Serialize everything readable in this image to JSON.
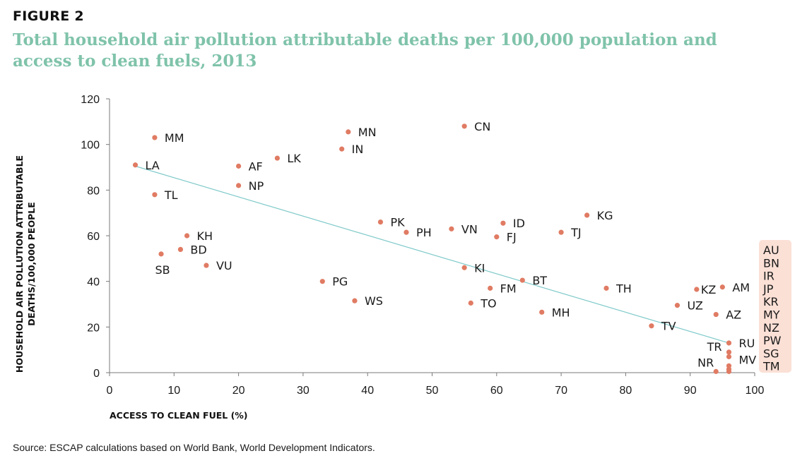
{
  "figure_label": "FIGURE 2",
  "source": "Source: ESCAP calculations based on World Bank, World Development Indicators.",
  "colors": {
    "title": "#7fc3aa",
    "point": "#e07b63",
    "trend": "#7fc9c9",
    "box": "#fbe0d6",
    "axis": "#7a7a7a"
  },
  "chart_data": {
    "type": "scatter",
    "title": "Total household air pollution attributable deaths per 100,000 population and access to clean fuels, 2013",
    "xlabel": "ACCESS TO CLEAN FUEL (%)",
    "ylabel": [
      "HOUSEHOLD AIR POLLUTION ATTRIBUTABLE",
      "DEATHS/100,000 PEOPLE"
    ],
    "xlim": [
      0,
      100
    ],
    "ylim": [
      0,
      120
    ],
    "xticks": [
      0,
      10,
      20,
      30,
      40,
      50,
      60,
      70,
      80,
      90,
      100
    ],
    "yticks": [
      0,
      20,
      40,
      60,
      80,
      100,
      120
    ],
    "grid": false,
    "trendline": {
      "x": [
        4,
        96
      ],
      "y": [
        90.5,
        13
      ]
    },
    "points": [
      {
        "label": "MM",
        "x": 7,
        "y": 103,
        "anchor": "right"
      },
      {
        "label": "LA",
        "x": 4,
        "y": 91,
        "anchor": "right"
      },
      {
        "label": "TL",
        "x": 7,
        "y": 78,
        "anchor": "right"
      },
      {
        "label": "KH",
        "x": 12,
        "y": 60,
        "anchor": "right"
      },
      {
        "label": "BD",
        "x": 11,
        "y": 54,
        "anchor": "right"
      },
      {
        "label": "SB",
        "x": 8,
        "y": 52,
        "anchor": "below"
      },
      {
        "label": "VU",
        "x": 15,
        "y": 47,
        "anchor": "right"
      },
      {
        "label": "AF",
        "x": 20,
        "y": 90.5,
        "anchor": "right"
      },
      {
        "label": "NP",
        "x": 20,
        "y": 82,
        "anchor": "right"
      },
      {
        "label": "LK",
        "x": 26,
        "y": 94,
        "anchor": "right"
      },
      {
        "label": "MN",
        "x": 37,
        "y": 105.5,
        "anchor": "right"
      },
      {
        "label": "IN",
        "x": 36,
        "y": 98,
        "anchor": "right"
      },
      {
        "label": "CN",
        "x": 55,
        "y": 108,
        "anchor": "right"
      },
      {
        "label": "PK",
        "x": 42,
        "y": 66,
        "anchor": "right"
      },
      {
        "label": "PH",
        "x": 46,
        "y": 61.5,
        "anchor": "right"
      },
      {
        "label": "VN",
        "x": 53,
        "y": 63,
        "anchor": "right"
      },
      {
        "label": "ID",
        "x": 61,
        "y": 65.5,
        "anchor": "right"
      },
      {
        "label": "FJ",
        "x": 60,
        "y": 59.5,
        "anchor": "right"
      },
      {
        "label": "TJ",
        "x": 70,
        "y": 61.5,
        "anchor": "right"
      },
      {
        "label": "KG",
        "x": 74,
        "y": 69,
        "anchor": "right"
      },
      {
        "label": "PG",
        "x": 33,
        "y": 40,
        "anchor": "right"
      },
      {
        "label": "WS",
        "x": 38,
        "y": 31.5,
        "anchor": "right"
      },
      {
        "label": "KI",
        "x": 55,
        "y": 46,
        "anchor": "right"
      },
      {
        "label": "BT",
        "x": 64,
        "y": 40.5,
        "anchor": "right"
      },
      {
        "label": "FM",
        "x": 59,
        "y": 37,
        "anchor": "right"
      },
      {
        "label": "TO",
        "x": 56,
        "y": 30.5,
        "anchor": "right"
      },
      {
        "label": "MH",
        "x": 67,
        "y": 26.5,
        "anchor": "right"
      },
      {
        "label": "TH",
        "x": 77,
        "y": 37,
        "anchor": "right"
      },
      {
        "label": "TV",
        "x": 84,
        "y": 20.5,
        "anchor": "right"
      },
      {
        "label": "UZ",
        "x": 88,
        "y": 29.5,
        "anchor": "right"
      },
      {
        "label": "KZ",
        "x": 91,
        "y": 36.5,
        "anchor": "right-tight"
      },
      {
        "label": "AM",
        "x": 95,
        "y": 37.5,
        "anchor": "right"
      },
      {
        "label": "AZ",
        "x": 94,
        "y": 25.5,
        "anchor": "right"
      },
      {
        "label": "RU",
        "x": 96,
        "y": 13,
        "anchor": "right"
      },
      {
        "label": "TR",
        "x": 96,
        "y": 9,
        "anchor": "left"
      },
      {
        "label": "MV",
        "x": 96,
        "y": 7,
        "anchor": "right-lower"
      },
      {
        "label": "NR",
        "x": 94,
        "y": 0.5,
        "anchor": "left-up"
      },
      {
        "label": "",
        "x": 96,
        "y": 3,
        "anchor": "none"
      },
      {
        "label": "",
        "x": 96,
        "y": 1.5,
        "anchor": "none"
      },
      {
        "label": "",
        "x": 96,
        "y": 0.5,
        "anchor": "none"
      }
    ],
    "grouped_labels": [
      "AU",
      "BN",
      "IR",
      "JP",
      "KR",
      "MY",
      "NZ",
      "PW",
      "SG",
      "TM"
    ]
  }
}
